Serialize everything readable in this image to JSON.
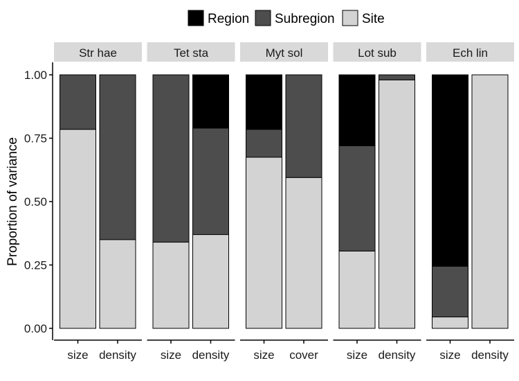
{
  "chart_data": {
    "type": "bar",
    "stacked": true,
    "ylabel": "Proportion of variance",
    "ylim": [
      0,
      1
    ],
    "yticks": [
      "0.00",
      "0.25",
      "0.50",
      "0.75",
      "1.00"
    ],
    "legend": {
      "placement": "top",
      "entries": [
        {
          "name": "Region",
          "color": "#000000"
        },
        {
          "name": "Subregion",
          "color": "#4d4d4d"
        },
        {
          "name": "Site",
          "color": "#d3d3d3"
        }
      ]
    },
    "stack_order": [
      "Site",
      "Subregion",
      "Region"
    ],
    "facets": [
      {
        "label": "Str hae",
        "bars": [
          {
            "category": "size",
            "Site": 0.785,
            "Subregion": 0.215,
            "Region": 0.0
          },
          {
            "category": "density",
            "Site": 0.35,
            "Subregion": 0.65,
            "Region": 0.0
          }
        ]
      },
      {
        "label": "Tet sta",
        "bars": [
          {
            "category": "size",
            "Site": 0.34,
            "Subregion": 0.66,
            "Region": 0.0
          },
          {
            "category": "density",
            "Site": 0.37,
            "Subregion": 0.42,
            "Region": 0.21
          }
        ]
      },
      {
        "label": "Myt sol",
        "bars": [
          {
            "category": "size",
            "Site": 0.675,
            "Subregion": 0.11,
            "Region": 0.215
          },
          {
            "category": "cover",
            "Site": 0.595,
            "Subregion": 0.405,
            "Region": 0.0
          }
        ]
      },
      {
        "label": "Lot sub",
        "bars": [
          {
            "category": "size",
            "Site": 0.305,
            "Subregion": 0.415,
            "Region": 0.28
          },
          {
            "category": "density",
            "Site": 0.98,
            "Subregion": 0.02,
            "Region": 0.0
          }
        ]
      },
      {
        "label": "Ech lin",
        "bars": [
          {
            "category": "size",
            "Site": 0.045,
            "Subregion": 0.2,
            "Region": 0.755
          },
          {
            "category": "density",
            "Site": 1.0,
            "Subregion": 0.0,
            "Region": 0.0
          }
        ]
      }
    ],
    "grid": false,
    "colors": {
      "strip_bg": "#d9d9d9",
      "bar_outline": "#000000",
      "axis": "#000000"
    }
  }
}
